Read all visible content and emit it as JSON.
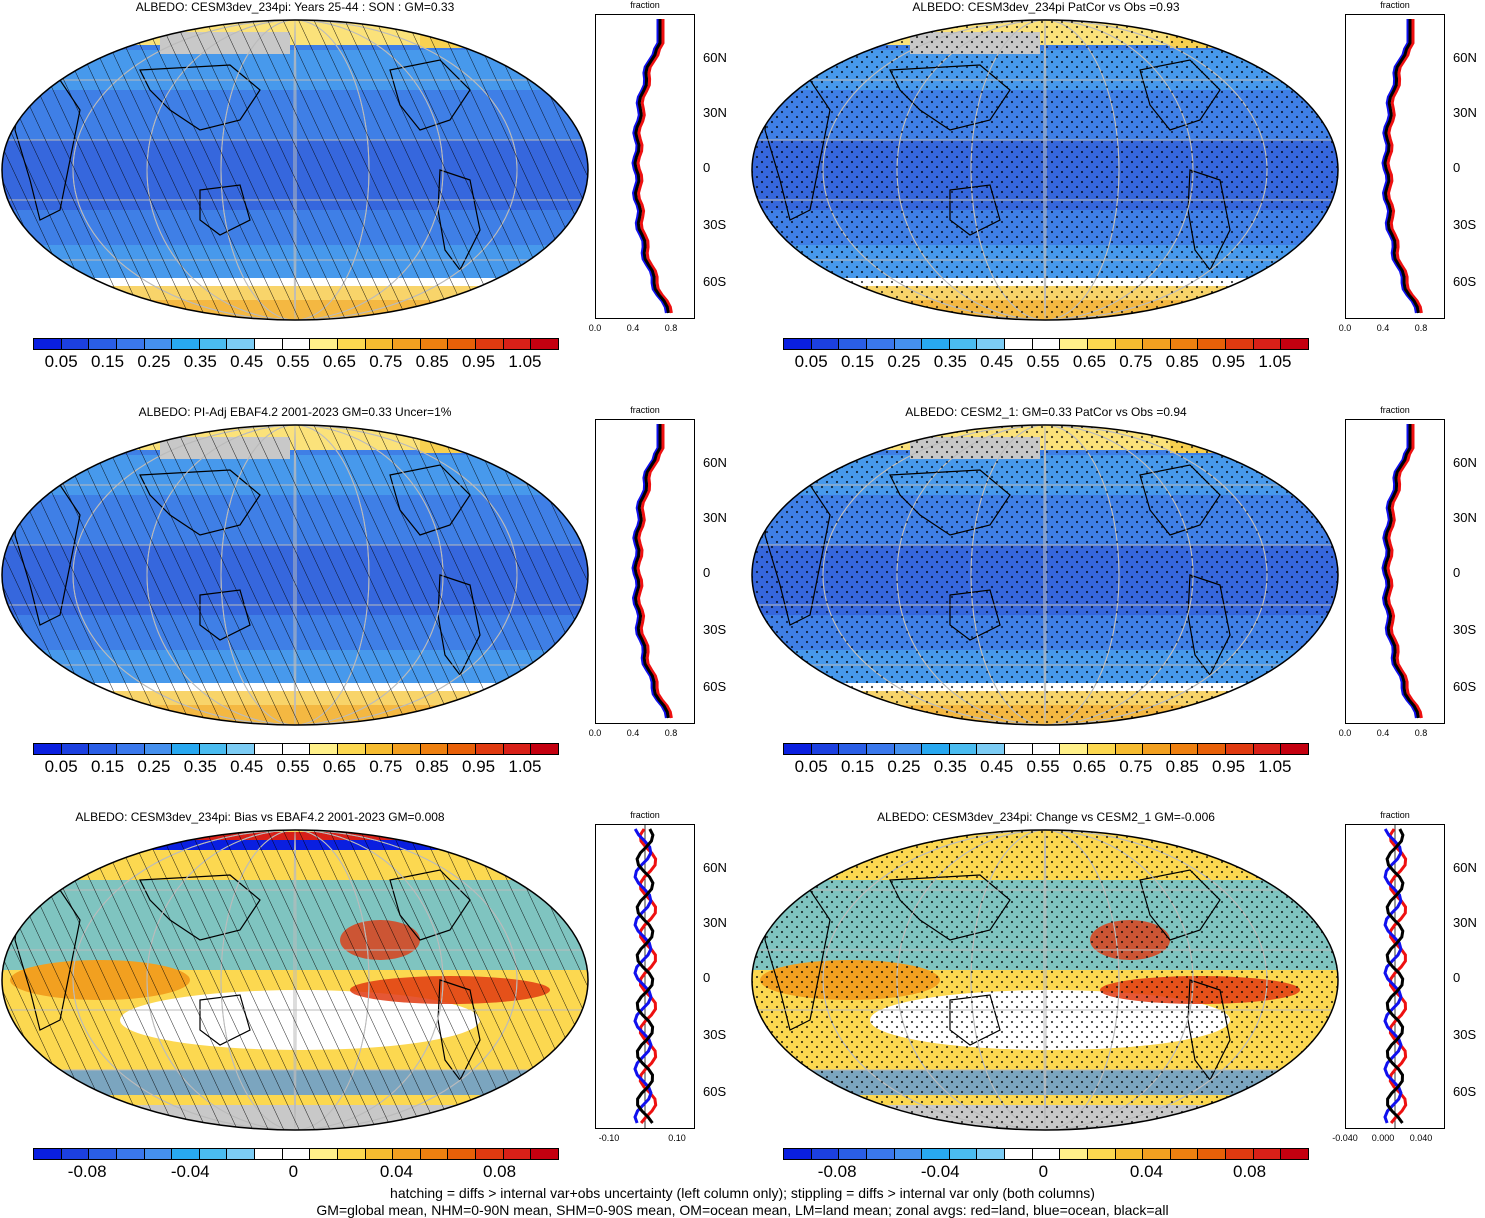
{
  "colors": {
    "scale": [
      "#0a1fe0",
      "#1c40e0",
      "#2a5ee6",
      "#3a78ec",
      "#4590ee",
      "#28a8f0",
      "#4abcf0",
      "#7cccf4",
      "#ffffff",
      "#ffffff",
      "#fff08a",
      "#fcd850",
      "#f6bc30",
      "#f2a020",
      "#ee8010",
      "#e86008",
      "#e03a10",
      "#d82018",
      "#c40010"
    ],
    "ocean_blue": "#3f7fe6",
    "deep_blue": "#3561db",
    "ice_yellow": "#f8d46a",
    "land_gray": "#c8c8c8"
  },
  "panels": [
    {
      "title": "ALBEDO: CESM3dev_234pi: Years 25-44 : SON : GM=0.33",
      "cbar_labels": [
        "0.05",
        "0.15",
        "0.25",
        "0.35",
        "0.45",
        "0.55",
        "0.65",
        "0.75",
        "0.85",
        "0.95",
        "1.05"
      ],
      "zonal_xticks": [
        "0.0",
        "0.4",
        "0.8"
      ],
      "zonal_header": "fraction",
      "lat_labels": [
        "60N",
        "30N",
        "0",
        "30S",
        "60S"
      ],
      "pattern": "hatching",
      "kind": "abs"
    },
    {
      "title": "ALBEDO: CESM3dev_234pi PatCor vs Obs =0.93",
      "cbar_labels": [
        "0.05",
        "0.15",
        "0.25",
        "0.35",
        "0.45",
        "0.55",
        "0.65",
        "0.75",
        "0.85",
        "0.95",
        "1.05"
      ],
      "zonal_xticks": [
        "0.0",
        "0.4",
        "0.8"
      ],
      "zonal_header": "fraction",
      "lat_labels": [
        "60N",
        "30N",
        "0",
        "30S",
        "60S"
      ],
      "pattern": "stipple",
      "kind": "abs"
    },
    {
      "title": "ALBEDO: PI-Adj EBAF4.2 2001-2023 GM=0.33 Uncer=1%",
      "cbar_labels": [
        "0.05",
        "0.15",
        "0.25",
        "0.35",
        "0.45",
        "0.55",
        "0.65",
        "0.75",
        "0.85",
        "0.95",
        "1.05"
      ],
      "zonal_xticks": [
        "0.0",
        "0.4",
        "0.8"
      ],
      "zonal_header": "fraction",
      "lat_labels": [
        "60N",
        "30N",
        "0",
        "30S",
        "60S"
      ],
      "pattern": "hatching",
      "kind": "abs"
    },
    {
      "title": "ALBEDO: CESM2_1: GM=0.33 PatCor vs Obs =0.94",
      "cbar_labels": [
        "0.05",
        "0.15",
        "0.25",
        "0.35",
        "0.45",
        "0.55",
        "0.65",
        "0.75",
        "0.85",
        "0.95",
        "1.05"
      ],
      "zonal_xticks": [
        "0.0",
        "0.4",
        "0.8"
      ],
      "zonal_header": "fraction",
      "lat_labels": [
        "60N",
        "30N",
        "0",
        "30S",
        "60S"
      ],
      "pattern": "stipple",
      "kind": "abs"
    },
    {
      "title": "ALBEDO: CESM3dev_234pi: Bias vs EBAF4.2 2001-2023  GM=0.008",
      "cbar_labels": [
        "-0.08",
        "-0.04",
        "0",
        "0.04",
        "0.08"
      ],
      "zonal_xticks": [
        "-0.10",
        "0.10"
      ],
      "zonal_header": "fraction",
      "lat_labels": [
        "60N",
        "30N",
        "0",
        "30S",
        "60S"
      ],
      "pattern": "hatching",
      "kind": "diff"
    },
    {
      "title": "ALBEDO: CESM3dev_234pi: Change vs CESM2_1 GM=-0.006",
      "cbar_labels": [
        "-0.08",
        "-0.04",
        "0",
        "0.04",
        "0.08"
      ],
      "zonal_xticks": [
        "-0.040",
        "0.000",
        "0.040"
      ],
      "zonal_header": "fraction",
      "lat_labels": [
        "60N",
        "30N",
        "0",
        "30S",
        "60S"
      ],
      "pattern": "stipple",
      "kind": "diff"
    }
  ],
  "footer": {
    "line1": "hatching = diffs > internal var+obs uncertainty (left column only); stippling = diffs > internal var only (both columns)",
    "line2": "GM=global mean, NHM=0-90N mean, SHM=0-90S mean, OM=ocean mean, LM=land mean; zonal avgs: red=land, blue=ocean, black=all"
  }
}
